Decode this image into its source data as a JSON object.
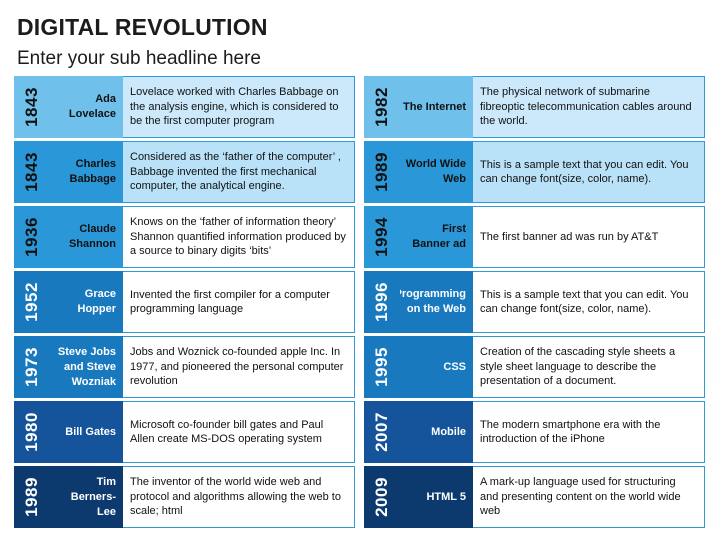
{
  "title": "DIGITAL REVOLUTION",
  "subtitle": "Enter your sub headline here",
  "colors": {
    "light": "#6fc1ec",
    "medium": "#2a98d8",
    "blue": "#1979bf",
    "dark": "#15539a",
    "navy": "#0d3a6e"
  },
  "left": [
    {
      "year": "1843",
      "name": "Ada Lovelace",
      "desc": "Lovelace worked with Charles Babbage on the analysis engine, which is considered to be the first computer program"
    },
    {
      "year": "1843",
      "name": "Charles Babbage",
      "desc": "Considered as the ‘father of the computer’ , Babbage invented the first mechanical computer, the analytical engine."
    },
    {
      "year": "1936",
      "name": "Claude Shannon",
      "desc": "Knows on the ‘father of information theory’ Shannon quantified information produced by  a source to binary digits ‘bits’"
    },
    {
      "year": "1952",
      "name": "Grace Hopper",
      "desc": "Invented the first compiler for a computer programming language"
    },
    {
      "year": "1973",
      "name": "Steve Jobs and Steve Wozniak",
      "desc": "Jobs and Woznick co-founded apple Inc. In 1977, and pioneered the personal computer revolution"
    },
    {
      "year": "1980",
      "name": "Bill Gates",
      "desc": "Microsoft co-founder bill gates and Paul Allen create MS-DOS operating system"
    },
    {
      "year": "1989",
      "name": "Tim Berners-Lee",
      "desc": "The inventor of the world wide web and protocol and algorithms allowing the web to scale; html"
    }
  ],
  "right": [
    {
      "year": "1982",
      "name": "The Internet",
      "desc": "The physical network of submarine fibreoptic telecommunication cables around the world."
    },
    {
      "year": "1989",
      "name": "World Wide Web",
      "desc": "This is a sample text that you can edit. You can change font(size, color, name)."
    },
    {
      "year": "1994",
      "name": "First Banner ad",
      "desc": "The first banner ad was run by AT&T"
    },
    {
      "year": "1996",
      "name": "Programming on the Web",
      "desc": "This is a sample text that you can edit. You can change font(size, color, name)."
    },
    {
      "year": "1995",
      "name": "CSS",
      "desc": "Creation of the cascading style sheets a style sheet language to describe the presentation of a document."
    },
    {
      "year": "2007",
      "name": "Mobile",
      "desc": "The modern smartphone era with the introduction of the iPhone"
    },
    {
      "year": "2009",
      "name": "HTML 5",
      "desc": "A mark-up language used for structuring and presenting content on the world wide web"
    }
  ]
}
